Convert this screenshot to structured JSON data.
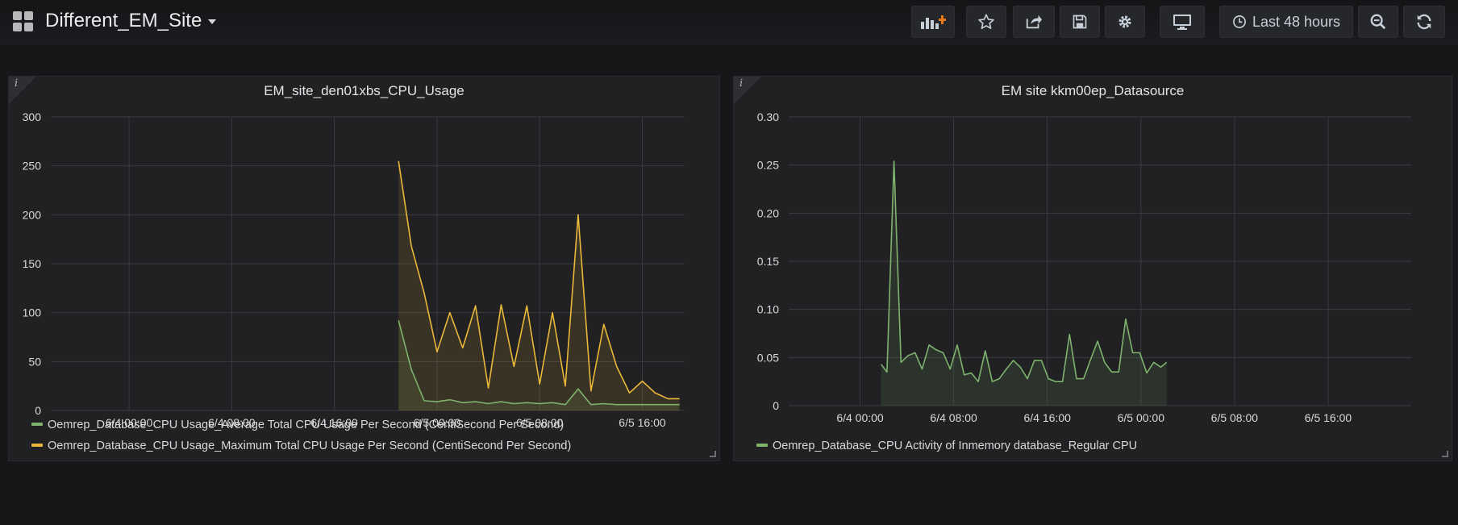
{
  "header": {
    "title": "Different_EM_Site",
    "time_range_label": "Last 48 hours"
  },
  "toolbar": {
    "add_panel_icon": "add-panel-icon",
    "star_icon": "star-icon",
    "share_icon": "share-icon",
    "save_icon": "save-icon",
    "settings_icon": "gear-icon",
    "tv_icon": "monitor-icon",
    "time_icon": "clock-icon",
    "zoom_icon": "zoom-out-icon",
    "refresh_icon": "refresh-icon"
  },
  "colors": {
    "green": "#7eb26d",
    "yellow": "#eab839",
    "grid": "#3a3b3f",
    "tick_text": "#d8d9da"
  },
  "panels": [
    {
      "title": "EM_site_den01xbs_CPU_Usage",
      "info": "i",
      "legend": [
        {
          "label": "Oemrep_Database_CPU Usage_Average Total CPU Usage Per Second (CentiSecond Per Second)",
          "color": "#7eb26d"
        },
        {
          "label": "Oemrep_Database_CPU Usage_Maximum Total CPU Usage Per Second (CentiSecond Per Second)",
          "color": "#eab839"
        }
      ]
    },
    {
      "title": "EM site kkm00ep_Datasource",
      "info": "i",
      "legend": [
        {
          "label": "Oemrep_Database_CPU Activity of Inmemory database_Regular CPU",
          "color": "#7eb26d"
        }
      ]
    }
  ],
  "chart_data": [
    {
      "type": "area",
      "title": "EM_site_den01xbs_CPU_Usage",
      "x_unit": "hours since 6/4 00:00",
      "xlim": [
        -6.1,
        43.3
      ],
      "ylim": [
        0,
        300
      ],
      "yticks": [
        "0",
        "50",
        "100",
        "150",
        "200",
        "250",
        "300"
      ],
      "xticks": [
        {
          "x": 0,
          "label": "6/4 00:00"
        },
        {
          "x": 8,
          "label": "6/4 08:00"
        },
        {
          "x": 16,
          "label": "6/4 16:00"
        },
        {
          "x": 24,
          "label": "6/5 00:00"
        },
        {
          "x": 32,
          "label": "6/5 08:00"
        },
        {
          "x": 40,
          "label": "6/5 16:00"
        }
      ],
      "grid": true,
      "legend_position": "bottom",
      "series": [
        {
          "name": "Oemrep_Database_CPU Usage_Average Total CPU Usage Per Second (CentiSecond Per Second)",
          "color": "#7eb26d",
          "x": [
            21.0,
            22.0,
            23.0,
            24.0,
            25.0,
            26.0,
            27.0,
            28.0,
            29.0,
            30.0,
            31.0,
            32.0,
            33.0,
            34.0,
            35.0,
            36.0,
            37.0,
            38.0,
            39.0,
            40.0,
            41.0,
            42.0,
            42.9
          ],
          "values": [
            92,
            42,
            10,
            9,
            11,
            8,
            9,
            7,
            9,
            7,
            8,
            7,
            8,
            6,
            22,
            6,
            7,
            6,
            6,
            6,
            6,
            6,
            6
          ]
        },
        {
          "name": "Oemrep_Database_CPU Usage_Maximum Total CPU Usage Per Second (CentiSecond Per Second)",
          "color": "#eab839",
          "x": [
            21.0,
            22.0,
            23.0,
            24.0,
            25.0,
            26.0,
            27.0,
            28.0,
            29.0,
            30.0,
            31.0,
            32.0,
            33.0,
            34.0,
            35.0,
            36.0,
            37.0,
            38.0,
            39.0,
            40.0,
            41.0,
            42.0,
            42.9
          ],
          "values": [
            255,
            168,
            120,
            60,
            100,
            64,
            107,
            23,
            108,
            45,
            107,
            27,
            100,
            25,
            200,
            20,
            88,
            45,
            18,
            30,
            18,
            12,
            12
          ]
        }
      ]
    },
    {
      "type": "area",
      "title": "EM site kkm00ep_Datasource",
      "x_unit": "hours since 6/4 00:00",
      "xlim": [
        -6.1,
        47.1
      ],
      "ylim": [
        0,
        0.3
      ],
      "yticks": [
        "0",
        "0.05",
        "0.10",
        "0.15",
        "0.20",
        "0.25",
        "0.30"
      ],
      "xticks": [
        {
          "x": 0,
          "label": "6/4 00:00"
        },
        {
          "x": 8,
          "label": "6/4 08:00"
        },
        {
          "x": 16,
          "label": "6/4 16:00"
        },
        {
          "x": 24,
          "label": "6/5 00:00"
        },
        {
          "x": 32,
          "label": "6/5 08:00"
        },
        {
          "x": 40,
          "label": "6/5 16:00"
        }
      ],
      "grid": true,
      "legend_position": "bottom",
      "series": [
        {
          "name": "Oemrep_Database_CPU Activity of Inmemory database_Regular CPU",
          "color": "#7eb26d",
          "x": [
            1.8,
            2.3,
            2.9,
            3.5,
            4.1,
            4.7,
            5.3,
            5.9,
            6.5,
            7.1,
            7.7,
            8.3,
            8.9,
            9.5,
            10.1,
            10.7,
            11.3,
            11.9,
            12.5,
            13.1,
            13.7,
            14.3,
            14.9,
            15.5,
            16.1,
            16.7,
            17.3,
            17.9,
            18.5,
            19.1,
            19.7,
            20.3,
            20.9,
            21.5,
            22.1,
            22.7,
            23.3,
            23.9,
            24.5,
            25.1,
            25.7,
            26.2
          ],
          "values": [
            0.043,
            0.035,
            0.254,
            0.045,
            0.052,
            0.055,
            0.038,
            0.063,
            0.058,
            0.055,
            0.038,
            0.063,
            0.032,
            0.034,
            0.025,
            0.057,
            0.025,
            0.028,
            0.038,
            0.047,
            0.04,
            0.028,
            0.047,
            0.047,
            0.028,
            0.025,
            0.025,
            0.074,
            0.028,
            0.028,
            0.048,
            0.067,
            0.045,
            0.035,
            0.035,
            0.09,
            0.055,
            0.055,
            0.034,
            0.045,
            0.04,
            0.045
          ]
        }
      ]
    }
  ]
}
